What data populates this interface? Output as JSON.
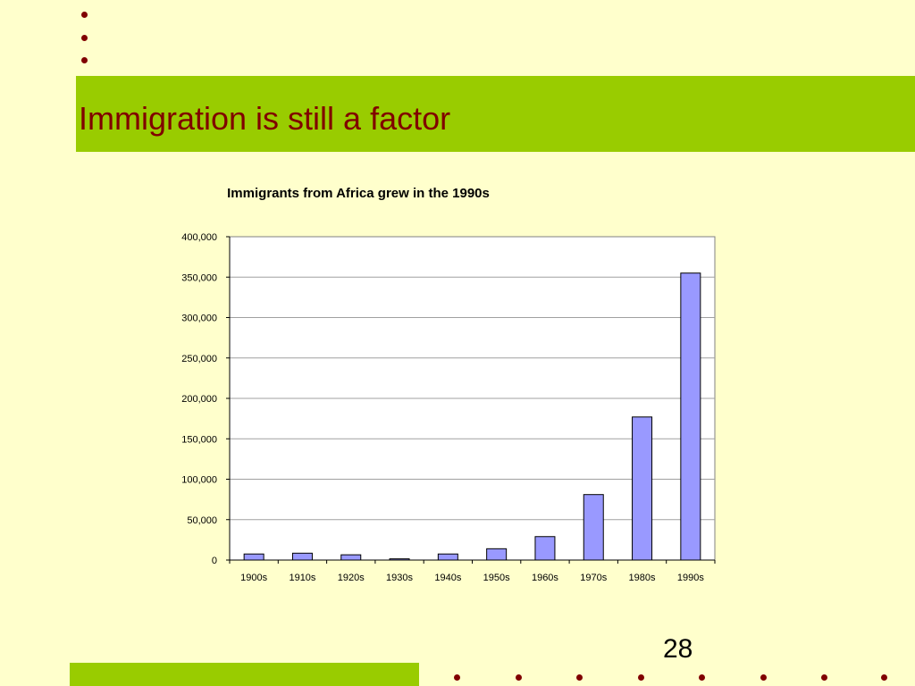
{
  "slide": {
    "title": "Immigration is still a factor",
    "page_number": "28"
  },
  "colors": {
    "background": "#ffffcc",
    "accent_band": "#99cc00",
    "title_text": "#800000",
    "bullet": "#800000",
    "bar_fill": "#9999ff"
  },
  "chart_data": {
    "type": "bar",
    "title": "Immigrants from Africa grew in the 1990s",
    "xlabel": "",
    "ylabel": "",
    "categories": [
      "1900s",
      "1910s",
      "1920s",
      "1930s",
      "1940s",
      "1950s",
      "1960s",
      "1970s",
      "1980s",
      "1990s"
    ],
    "values": [
      7500,
      8500,
      6500,
      1500,
      7500,
      14000,
      29000,
      81000,
      177000,
      355000
    ],
    "ylim": [
      0,
      400000
    ],
    "yticks": [
      "0",
      "50,000",
      "100,000",
      "150,000",
      "200,000",
      "250,000",
      "300,000",
      "350,000",
      "400,000"
    ],
    "grid": true,
    "legend": false
  }
}
